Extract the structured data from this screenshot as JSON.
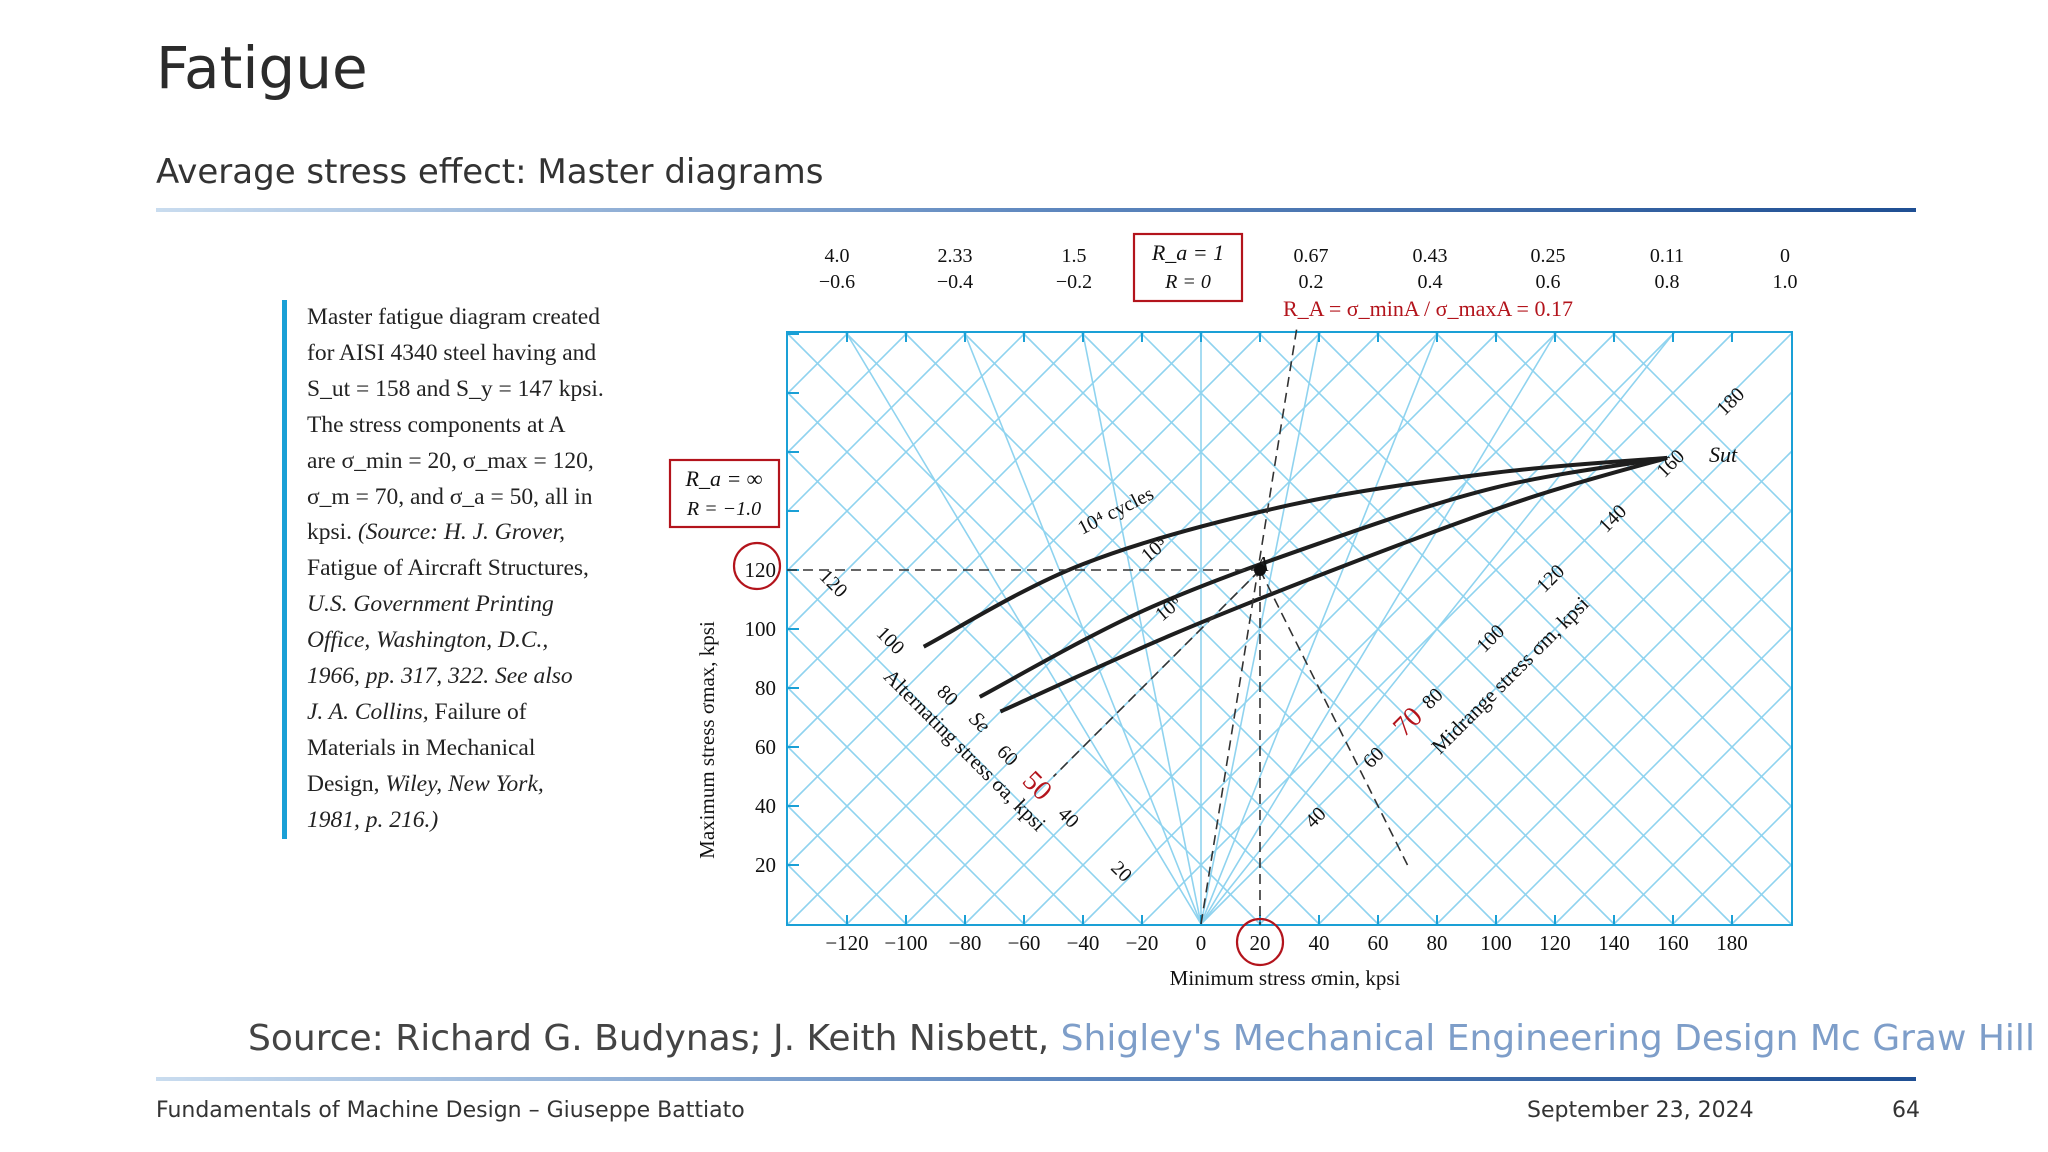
{
  "slide": {
    "title": "Fatigue",
    "subtitle": "Average stress effect: Master diagrams",
    "caption": {
      "line1": "Master fatigue diagram created",
      "line2": "for AISI 4340 steel having and",
      "line3": "S_ut = 158 and S_y = 147 kpsi.",
      "line4": "The stress components at A",
      "line5": "are σ_min = 20, σ_max = 120,",
      "line6": "σ_m = 70, and σ_a = 50, all in",
      "line7_a": "kpsi.",
      "line7_b": "(Source: H. J. Grover,",
      "line8": "Fatigue of Aircraft Structures,",
      "line9": "U.S. Government Printing",
      "line10": "Office, Washington, D.C.,",
      "line11": "1966, pp. 317, 322. See also",
      "line12_a": "J. A. Collins,",
      "line12_b": "Failure of",
      "line13": "Materials in Mechanical",
      "line14_a": "Design,",
      "line14_b": "Wiley, New York,",
      "line15": "1981, p. 216.)"
    },
    "source_prefix": "Source: Richard G. Budynas; J. Keith Nisbett, ",
    "source_link": "Shigley's Mechanical Engineering Design Mc Graw Hill",
    "footer": {
      "left": "Fundamentals of Machine Design – Giuseppe Battiato",
      "date": "September 23, 2024",
      "page": "64"
    }
  },
  "colors": {
    "grid": "#8fd3ef",
    "frame": "#1aa0d6",
    "curve": "#1e1e1e",
    "annotation": "#b3141c",
    "accent_rule": "#1f4f93"
  },
  "chart_data": {
    "type": "line",
    "xlabel": "Minimum stress σmin, kpsi",
    "ylabel": "Maximum stress σmax, kpsi",
    "xlim": [
      -130,
      200
    ],
    "ylim": [
      0,
      200
    ],
    "x_ticks": [
      "−120",
      "−100",
      "−80",
      "−60",
      "−40",
      "−20",
      "0",
      "20",
      "40",
      "60",
      "80",
      "100",
      "120",
      "140",
      "160",
      "180"
    ],
    "y_ticks": [
      "20",
      "40",
      "60",
      "80",
      "100",
      "120"
    ],
    "top_A_ratios": [
      "4.0",
      "2.33",
      "1.5",
      "1",
      "0.67",
      "0.43",
      "0.25",
      "0.11",
      "0"
    ],
    "top_R_ratios": [
      "−0.6",
      "−0.4",
      "−0.2",
      "0",
      "0.2",
      "0.4",
      "0.6",
      "0.8",
      "1.0"
    ],
    "boxed_top_A": "R_a = 1",
    "boxed_top_R": "R = 0",
    "boxed_left_A": "R_a = ∞",
    "boxed_left_R": "R = −1.0",
    "alternating_axis_label": "Alternating stress σa, kpsi",
    "alternating_ticks": [
      "20",
      "40",
      "60",
      "80",
      "100",
      "120"
    ],
    "midrange_axis_label": "Midrange stress σm, kpsi",
    "midrange_ticks": [
      "40",
      "60",
      "80",
      "100",
      "120",
      "140",
      "160",
      "180"
    ],
    "Se_label": "Se",
    "Sut_label": "Sut",
    "series": [
      {
        "name": "10⁴ cycles",
        "x": [
          -94,
          -40,
          30,
          100,
          158
        ],
        "y": [
          94,
          122,
          142,
          153,
          158
        ]
      },
      {
        "name": "10⁵",
        "x": [
          -75,
          -20,
          40,
          100,
          158
        ],
        "y": [
          77,
          106,
          129,
          148,
          158
        ]
      },
      {
        "name": "10⁶",
        "x": [
          -68,
          -10,
          50,
          110,
          158
        ],
        "y": [
          72,
          98,
          122,
          144,
          158
        ]
      }
    ],
    "point_A": {
      "label": "A",
      "sigma_min": 20,
      "sigma_max": 120,
      "sigma_m": 70,
      "sigma_a": 50
    },
    "ratio_annotation": "R_A = σ_minA / σ_maxA = 0.17",
    "annot_50": "50",
    "annot_70": "70",
    "circled_y": "120",
    "circled_x": "20"
  }
}
